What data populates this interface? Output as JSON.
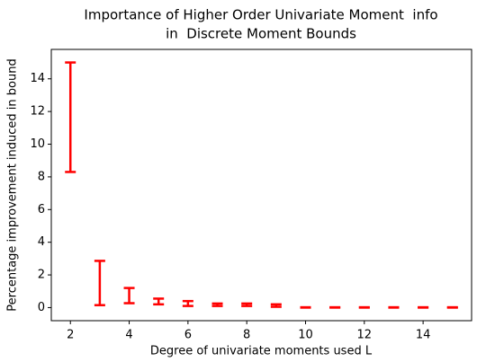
{
  "chart_data": {
    "type": "errorbar",
    "title": [
      "Importance of Higher Order Univariate Moment  info",
      "in  Discrete Moment Bounds"
    ],
    "xlabel": "Degree of univariate moments used L",
    "ylabel": "Percentage improvement induced in bound",
    "x": [
      2,
      3,
      4,
      5,
      6,
      7,
      8,
      9,
      10,
      11,
      12,
      13,
      14,
      15
    ],
    "low": [
      8.3,
      0.15,
      0.27,
      0.2,
      0.1,
      0.1,
      0.1,
      0.05,
      0,
      0,
      0,
      0,
      0,
      0
    ],
    "high": [
      15.0,
      2.86,
      1.2,
      0.55,
      0.4,
      0.25,
      0.25,
      0.2,
      0.02,
      0.02,
      0.02,
      0.02,
      0.02,
      0.02
    ],
    "color": "#ff0000",
    "xlim": [
      1.35,
      15.65
    ],
    "xticks": [
      2,
      4,
      6,
      8,
      10,
      12,
      14
    ],
    "ylim": [
      -0.8,
      15.8
    ],
    "yticks": [
      0,
      2,
      4,
      6,
      8,
      10,
      12,
      14
    ]
  }
}
